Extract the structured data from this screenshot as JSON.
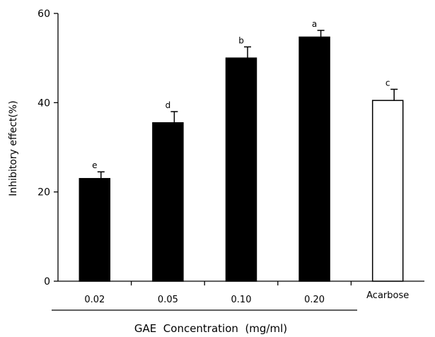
{
  "chart_data": {
    "type": "bar",
    "categories": [
      "0.02",
      "0.05",
      "0.10",
      "0.20",
      "Acarbose"
    ],
    "values": [
      23,
      35.5,
      50,
      54.7,
      40.5
    ],
    "errors": [
      1.5,
      2.5,
      2.5,
      1.5,
      2.5
    ],
    "significance_labels": [
      "e",
      "d",
      "b",
      "a",
      "c"
    ],
    "bar_fill": [
      "#000000",
      "#000000",
      "#000000",
      "#000000",
      "#ffffff"
    ],
    "ylabel": "Inhibitory effect(%)",
    "xlabel": "GAE  Concentration  (mg/ml)",
    "ylim": [
      0,
      60
    ],
    "yticks": [
      0,
      20,
      40,
      60
    ],
    "grid": false
  }
}
